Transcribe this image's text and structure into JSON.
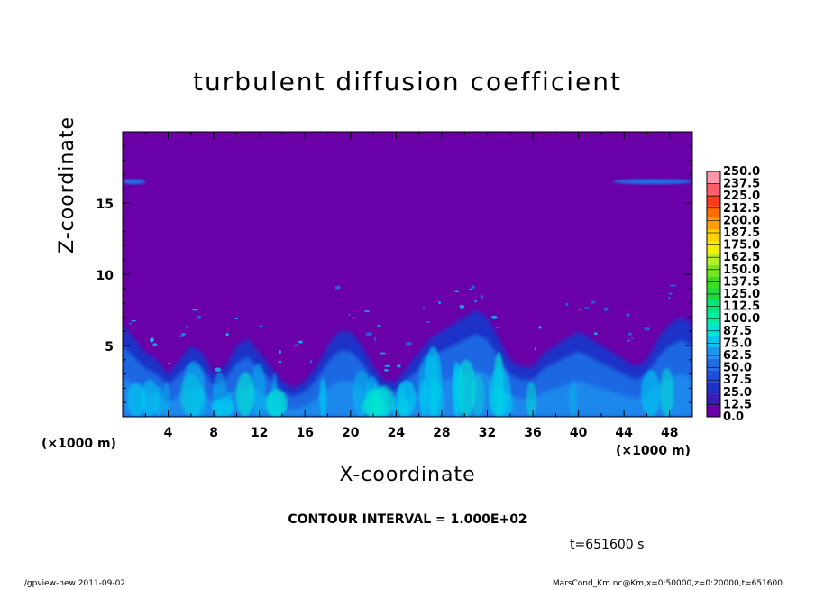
{
  "chart_data": {
    "type": "heatmap",
    "title": "turbulent diffusion coefficient",
    "xlabel": "X-coordinate",
    "ylabel": "Z-coordinate",
    "x_unit": "(×1000 m)",
    "y_unit": "(×1000 m)",
    "xlim": [
      0,
      50
    ],
    "ylim": [
      0,
      20
    ],
    "x_ticks": [
      4,
      8,
      12,
      16,
      20,
      24,
      28,
      32,
      36,
      40,
      44,
      48
    ],
    "y_ticks": [
      5,
      10,
      15
    ],
    "colorbar": {
      "levels": [
        0.0,
        12.5,
        25.0,
        37.5,
        50.0,
        62.5,
        75.0,
        87.5,
        100.0,
        112.5,
        125.0,
        137.5,
        150.0,
        162.5,
        175.0,
        187.5,
        200.0,
        212.5,
        225.0,
        237.5,
        250.0
      ],
      "labels": [
        "0.0",
        "12.5",
        "25.0",
        "37.5",
        "50.0",
        "62.5",
        "75.0",
        "87.5",
        "100.0",
        "112.5",
        "125.0",
        "137.5",
        "150.0",
        "162.5",
        "175.0",
        "187.5",
        "200.0",
        "212.5",
        "225.0",
        "237.5",
        "250.0"
      ],
      "colors": [
        "#6a00a8",
        "#3a1cb8",
        "#1e32c8",
        "#1e50dc",
        "#1e6ee6",
        "#1e96f0",
        "#00c8f0",
        "#00e6d2",
        "#00f0a0",
        "#00e678",
        "#1edc3c",
        "#3cdc1e",
        "#78e61e",
        "#b4f01e",
        "#f0f000",
        "#ffd200",
        "#ffa000",
        "#ff6e00",
        "#ff3c1e",
        "#ff5a6e",
        "#ff96aa"
      ]
    },
    "background_value": 0.0,
    "turbulent_boundary_height_km": [
      6.5,
      5.5,
      4.5,
      4.0,
      3.0,
      4.0,
      5.0,
      4.5,
      3.0,
      3.5,
      5.0,
      5.5,
      4.5,
      3.5,
      2.5,
      2.0,
      2.5,
      3.5,
      5.0,
      6.0,
      6.0,
      5.0,
      3.5,
      2.5,
      2.5,
      3.5,
      4.5,
      5.5,
      6.0,
      6.5,
      7.0,
      7.5,
      7.0,
      5.5,
      4.0,
      3.5,
      3.5,
      4.5,
      5.0,
      5.5,
      6.0,
      5.5,
      5.0,
      4.5,
      4.0,
      3.5,
      4.0,
      5.5,
      6.5,
      7.0,
      6.5
    ],
    "upper_layer": {
      "z_km": 16.5,
      "x_ranges": [
        [
          0,
          2
        ],
        [
          43,
          50
        ]
      ]
    },
    "contour_interval": "CONTOUR INTERVAL = 1.000E+02",
    "time_label": "t=651600 s"
  },
  "footer": {
    "left": "./gpview-new  2011-09-02",
    "right": "MarsCond_Km.nc@Km,x=0:50000,z=0:20000,t=651600"
  }
}
